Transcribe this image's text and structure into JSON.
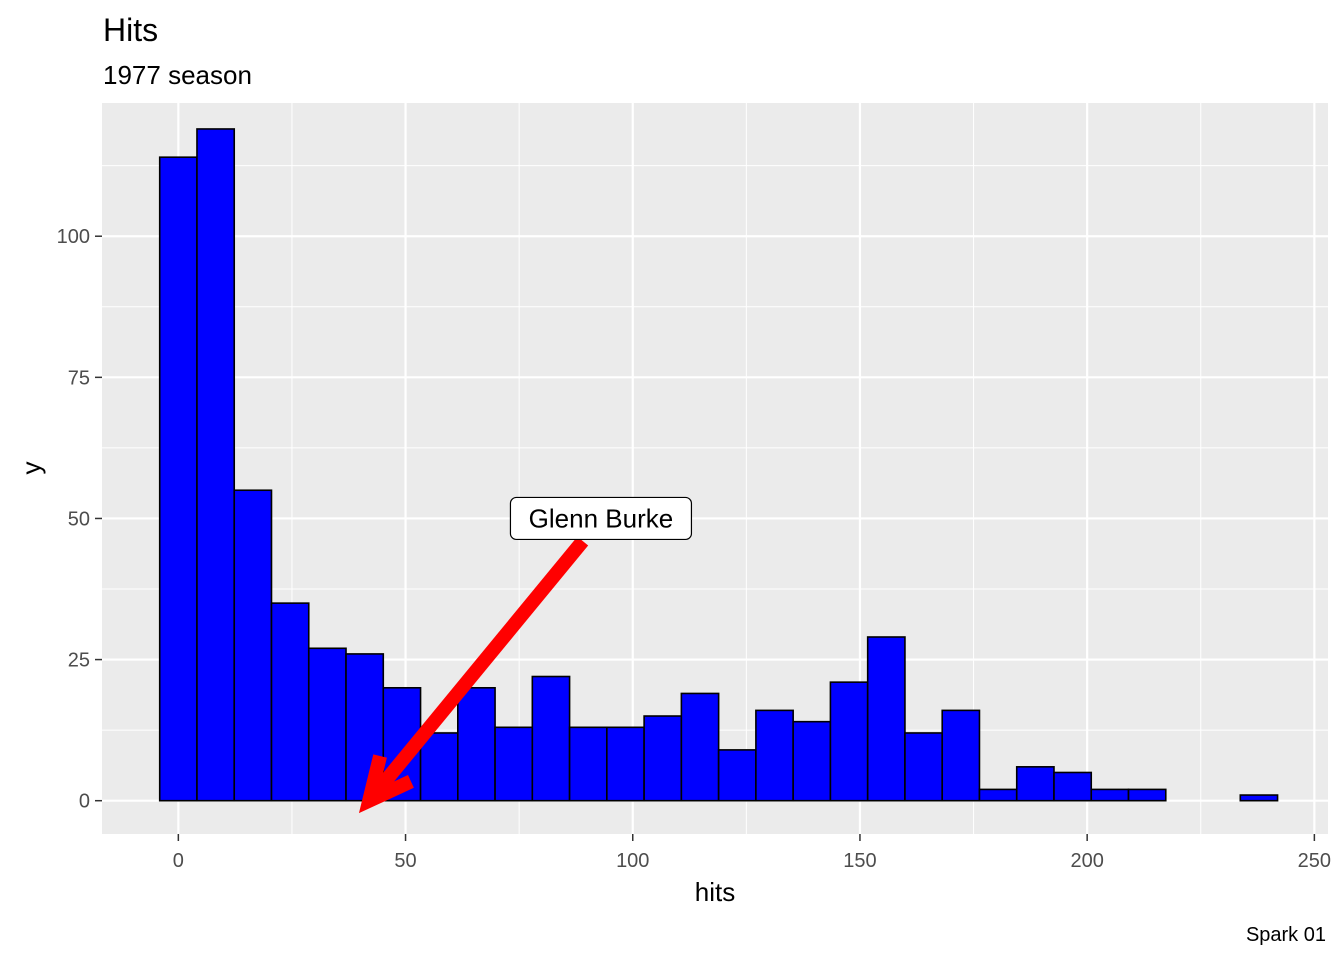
{
  "chart_data": {
    "type": "bar",
    "title": "Hits",
    "subtitle": "1977 season",
    "xlabel": "hits",
    "ylabel": "y",
    "caption": "Spark 01",
    "xlim": [
      -16.8,
      253.0
    ],
    "ylim": [
      -5.9,
      123.6
    ],
    "x_ticks": [
      0,
      50,
      100,
      150,
      200,
      250
    ],
    "x_tick_labels": [
      "0",
      "50",
      "100",
      "150",
      "200",
      "250"
    ],
    "y_ticks": [
      0,
      25,
      50,
      75,
      100
    ],
    "y_tick_labels": [
      "0",
      "25",
      "50",
      "75",
      "100"
    ],
    "bin_width": 8.2,
    "bin_starts": [
      -4.1,
      4.1,
      12.3,
      20.5,
      28.7,
      36.9,
      45.1,
      53.3,
      61.5,
      69.7,
      77.9,
      86.1,
      94.3,
      102.5,
      110.7,
      118.9,
      127.1,
      135.3,
      143.5,
      151.7,
      159.9,
      168.1,
      176.3,
      184.5,
      192.7,
      200.9,
      209.1,
      217.3,
      225.5,
      233.7
    ],
    "values": [
      114,
      119,
      55,
      35,
      27,
      26,
      20,
      12,
      20,
      13,
      22,
      13,
      13,
      15,
      19,
      9,
      16,
      14,
      21,
      29,
      12,
      16,
      2,
      6,
      5,
      2,
      2,
      0,
      0,
      1
    ],
    "bar_fill": "#0000ff",
    "bar_outline": "#000000",
    "panel_background": "#ebebeb",
    "grid": true,
    "annotation": {
      "label": "Glenn Burke",
      "label_x": 93,
      "label_y": 50,
      "arrow_from_x": 89,
      "arrow_from_y": 46,
      "arrow_to_x": 42,
      "arrow_to_y": 0,
      "arrow_color": "#ff0000"
    }
  }
}
